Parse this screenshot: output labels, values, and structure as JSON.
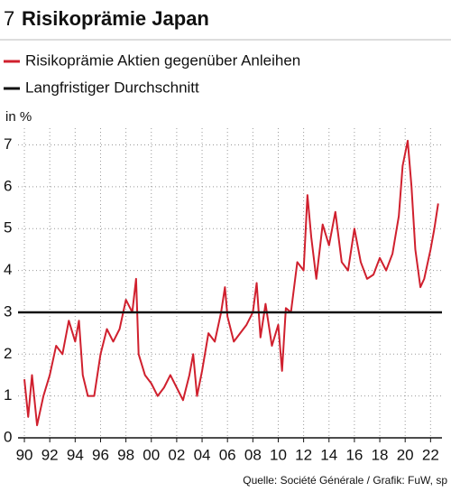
{
  "chart_data": {
    "type": "line",
    "number": "7",
    "title": "Risikoprämie Japan",
    "y_label": "in %",
    "source": "Quelle: Société Générale / Grafik: FuW, sp",
    "x": [
      1990.0,
      1990.3,
      1990.6,
      1991.0,
      1991.5,
      1992.0,
      1992.5,
      1993.0,
      1993.5,
      1994.0,
      1994.3,
      1994.6,
      1995.0,
      1995.5,
      1996.0,
      1996.5,
      1997.0,
      1997.5,
      1998.0,
      1998.5,
      1998.8,
      1999.0,
      1999.5,
      2000.0,
      2000.5,
      2001.0,
      2001.5,
      2002.0,
      2002.5,
      2003.0,
      2003.3,
      2003.6,
      2004.0,
      2004.5,
      2005.0,
      2005.5,
      2005.8,
      2006.0,
      2006.5,
      2007.0,
      2007.5,
      2008.0,
      2008.3,
      2008.6,
      2009.0,
      2009.5,
      2010.0,
      2010.3,
      2010.6,
      2011.0,
      2011.5,
      2012.0,
      2012.3,
      2012.6,
      2013.0,
      2013.5,
      2014.0,
      2014.5,
      2015.0,
      2015.5,
      2016.0,
      2016.5,
      2017.0,
      2017.5,
      2018.0,
      2018.5,
      2019.0,
      2019.5,
      2019.8,
      2020.2,
      2020.5,
      2020.8,
      2021.2,
      2021.5,
      2022.0,
      2022.3,
      2022.6
    ],
    "series": [
      {
        "name": "Risikoprämie Aktien gegenüber Anleihen",
        "color": "#d0202e",
        "values": [
          1.4,
          0.5,
          1.5,
          0.3,
          1.0,
          1.5,
          2.2,
          2.0,
          2.8,
          2.3,
          2.8,
          1.5,
          1.0,
          1.0,
          2.0,
          2.6,
          2.3,
          2.6,
          3.3,
          3.0,
          3.8,
          2.0,
          1.5,
          1.3,
          1.0,
          1.2,
          1.5,
          1.2,
          0.9,
          1.5,
          2.0,
          1.0,
          1.6,
          2.5,
          2.3,
          3.0,
          3.6,
          2.9,
          2.3,
          2.5,
          2.7,
          3.0,
          3.7,
          2.4,
          3.2,
          2.2,
          2.7,
          1.6,
          3.1,
          3.0,
          4.2,
          4.0,
          5.8,
          4.8,
          3.8,
          5.1,
          4.6,
          5.4,
          4.2,
          4.0,
          5.0,
          4.2,
          3.8,
          3.9,
          4.3,
          4.0,
          4.4,
          5.3,
          6.5,
          7.1,
          6.0,
          4.5,
          3.6,
          3.8,
          4.5,
          5.0,
          5.6
        ]
      },
      {
        "name": "Langfristiger Durchschnitt",
        "color": "#111111",
        "value": 3
      }
    ],
    "xlim": [
      1989.5,
      2022.9
    ],
    "ylim": [
      0,
      7.4
    ],
    "xticks": [
      {
        "value": 1990,
        "label": "90"
      },
      {
        "value": 1992,
        "label": "92"
      },
      {
        "value": 1994,
        "label": "94"
      },
      {
        "value": 1996,
        "label": "96"
      },
      {
        "value": 1998,
        "label": "98"
      },
      {
        "value": 2000,
        "label": "00"
      },
      {
        "value": 2002,
        "label": "02"
      },
      {
        "value": 2004,
        "label": "04"
      },
      {
        "value": 2006,
        "label": "06"
      },
      {
        "value": 2008,
        "label": "08"
      },
      {
        "value": 2010,
        "label": "10"
      },
      {
        "value": 2012,
        "label": "12"
      },
      {
        "value": 2014,
        "label": "14"
      },
      {
        "value": 2016,
        "label": "16"
      },
      {
        "value": 2018,
        "label": "18"
      },
      {
        "value": 2020,
        "label": "20"
      },
      {
        "value": 2022,
        "label": "22"
      }
    ],
    "yticks": [
      0,
      1,
      2,
      3,
      4,
      5,
      6,
      7
    ],
    "grid": true
  }
}
